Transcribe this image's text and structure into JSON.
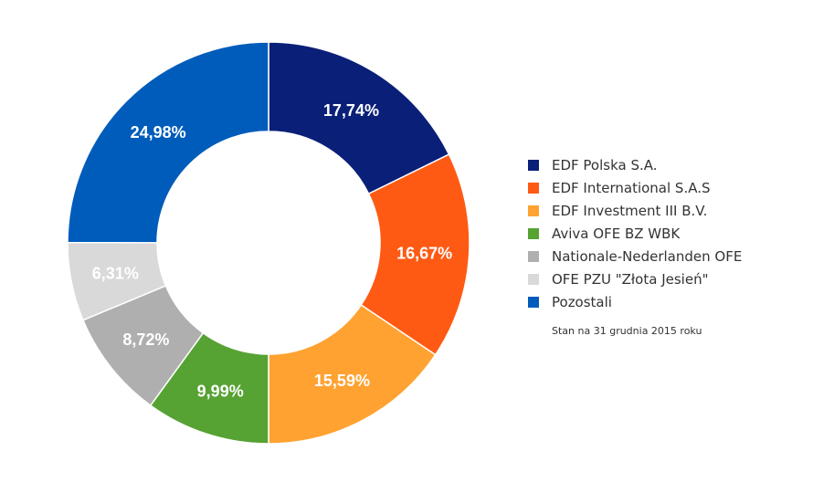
{
  "chart_data": {
    "type": "pie",
    "variant": "donut",
    "title": "",
    "legend_position": "right",
    "categories": [
      "EDF Polska S.A.",
      "EDF International S.A.S",
      "EDF Investment III B.V.",
      "Aviva OFE BZ WBK",
      "Nationale-Nederlanden OFE",
      "OFE PZU \"Złota Jesień\"",
      "Pozostali"
    ],
    "values": [
      17.74,
      16.67,
      15.59,
      9.99,
      8.72,
      6.31,
      24.98
    ],
    "labels": [
      "17,74%",
      "16,67%",
      "15,59%",
      "9,99%",
      "8,72%",
      "6,31%",
      "24,98%"
    ],
    "colors": [
      "#0a1f78",
      "#ff5a14",
      "#ffa231",
      "#56a233",
      "#afafaf",
      "#d9d9d9",
      "#005cbb"
    ]
  },
  "note": "Stan na 31 grudnia 2015 roku"
}
